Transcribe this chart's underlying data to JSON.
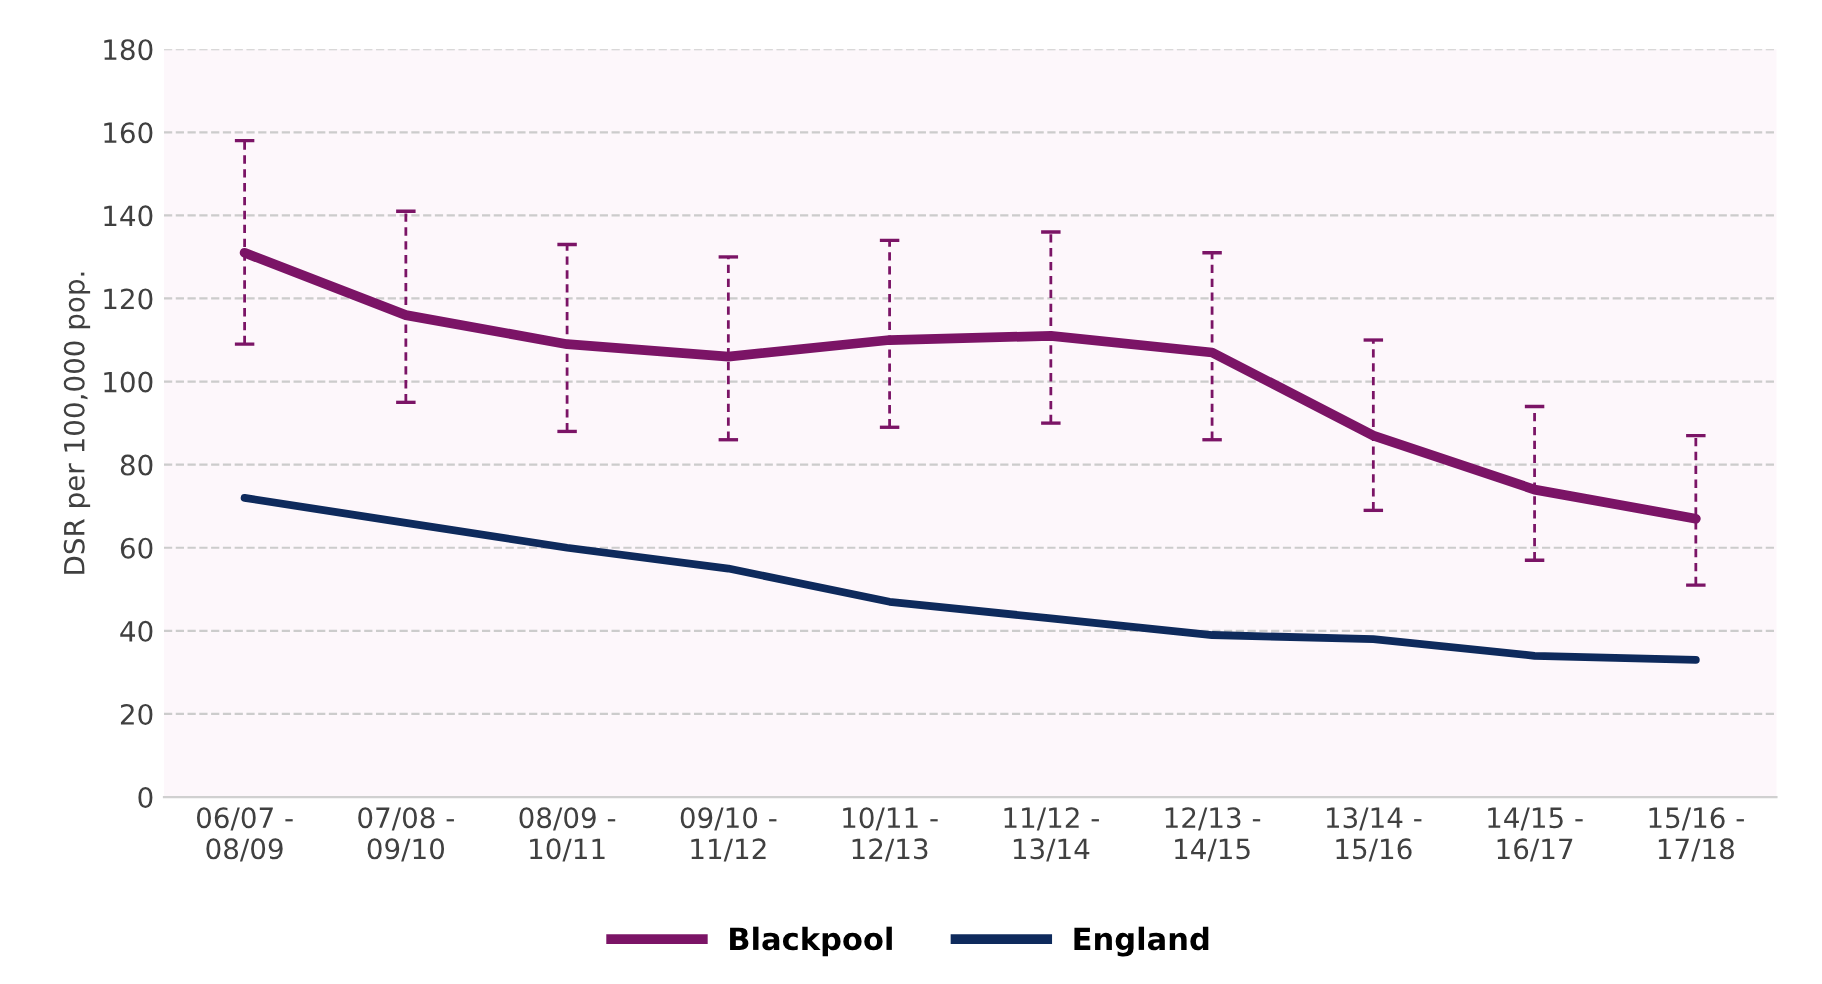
{
  "chart_data": {
    "type": "line",
    "ylabel": "DSR per 100,000 pop.",
    "categories": [
      "06/07 -\n08/09",
      "07/08 -\n09/10",
      "08/09 -\n10/11",
      "09/10 -\n11/12",
      "10/11 -\n12/13",
      "11/12 -\n13/14",
      "12/13 -\n14/15",
      "13/14 -\n15/16",
      "14/15 -\n16/17",
      "15/16 -\n17/18"
    ],
    "series": [
      {
        "name": "Blackpool",
        "color": "#7b1466",
        "values": [
          131,
          116,
          109,
          106,
          110,
          111,
          107,
          87,
          74,
          67
        ],
        "errors": [
          [
            109,
            158
          ],
          [
            95,
            141
          ],
          [
            88,
            133
          ],
          [
            86,
            130
          ],
          [
            89,
            134
          ],
          [
            90,
            136
          ],
          [
            86,
            131
          ],
          [
            69,
            110
          ],
          [
            57,
            94
          ],
          [
            51,
            87
          ]
        ]
      },
      {
        "name": "England",
        "color": "#0e2a5c",
        "values": [
          72,
          66,
          60,
          55,
          47,
          43,
          39,
          38,
          34,
          33
        ]
      }
    ],
    "ylim": [
      0,
      180
    ],
    "yticks": [
      0,
      20,
      40,
      60,
      80,
      100,
      120,
      140,
      160,
      180
    ],
    "grid": "y",
    "legend": "bottom",
    "marker": "none",
    "line_style": "solid"
  }
}
